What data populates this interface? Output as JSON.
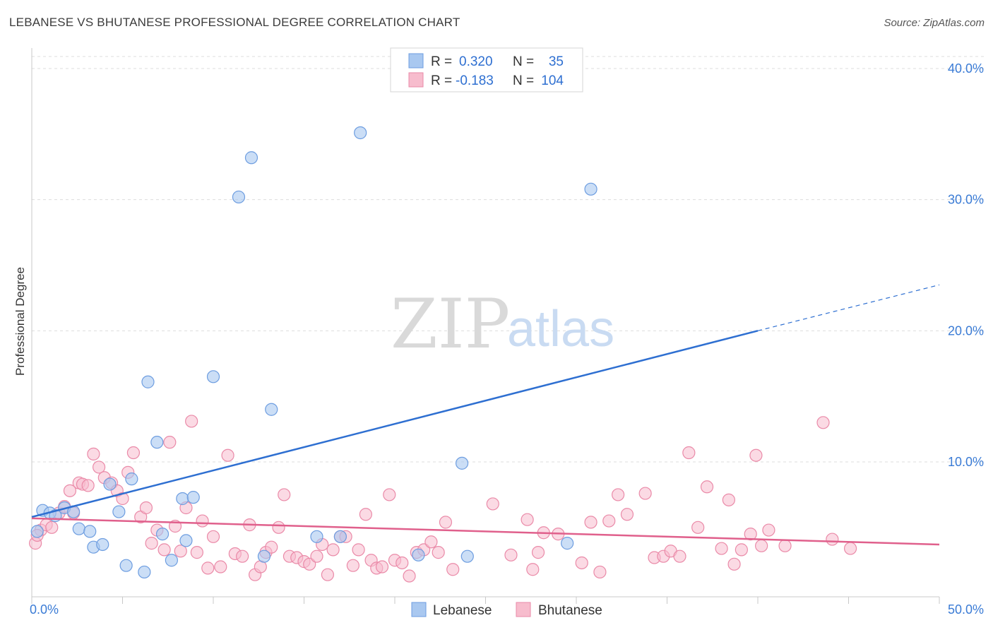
{
  "title": "LEBANESE VS BHUTANESE PROFESSIONAL DEGREE CORRELATION CHART",
  "source": "Source: ZipAtlas.com",
  "watermark": {
    "zip": "ZIP",
    "atlas": "atlas"
  },
  "legend": {
    "rows": [
      {
        "r_label": "R =",
        "r_value": "0.320",
        "n_label": "N =",
        "n_value": "35",
        "color": "#a9c8f0",
        "border": "#6d9de0"
      },
      {
        "r_label": "R =",
        "r_value": "-0.183",
        "n_label": "N =",
        "n_value": "104",
        "color": "#f7bccd",
        "border": "#ea8aa8"
      }
    ]
  },
  "colors": {
    "blue_fill": "#a9c8f0",
    "blue_stroke": "#6d9de0",
    "blue_line": "#2e6fd1",
    "pink_fill": "#f7bccd",
    "pink_stroke": "#ea8aa8",
    "pink_line": "#e0608c",
    "grid": "#dddddd",
    "tick": "#3a7bd5"
  },
  "chart_data": {
    "type": "scatter",
    "title": "LEBANESE VS BHUTANESE PROFESSIONAL DEGREE CORRELATION CHART",
    "xlabel": "",
    "ylabel": "Professional Degree",
    "xlim": [
      0,
      50
    ],
    "ylim": [
      0,
      42
    ],
    "x_tick_labels": [
      "0.0%",
      "50.0%"
    ],
    "y_ticks": [
      10,
      20,
      30,
      40
    ],
    "y_tick_labels": [
      "10.0%",
      "20.0%",
      "30.0%",
      "40.0%"
    ],
    "grid": true,
    "legend_position": "top-center",
    "series": [
      {
        "name": "Lebanese",
        "r": 0.32,
        "n": 35,
        "trend": {
          "x0": 0,
          "y0": 5.8,
          "x1": 40,
          "y1": 20.0,
          "dash_to_x": 50,
          "dash_to_y": 23.5
        },
        "points": [
          [
            0.3,
            4.7
          ],
          [
            0.6,
            6.3
          ],
          [
            1.0,
            6.1
          ],
          [
            1.3,
            5.9
          ],
          [
            1.8,
            6.5
          ],
          [
            2.3,
            6.2
          ],
          [
            2.6,
            4.9
          ],
          [
            3.2,
            4.7
          ],
          [
            3.4,
            3.5
          ],
          [
            3.9,
            3.7
          ],
          [
            4.3,
            8.3
          ],
          [
            4.8,
            6.2
          ],
          [
            5.2,
            2.1
          ],
          [
            5.5,
            8.7
          ],
          [
            6.2,
            1.6
          ],
          [
            6.4,
            16.1
          ],
          [
            6.9,
            11.5
          ],
          [
            7.2,
            4.5
          ],
          [
            7.7,
            2.5
          ],
          [
            8.3,
            7.2
          ],
          [
            8.5,
            4.0
          ],
          [
            8.9,
            7.3
          ],
          [
            10.0,
            16.5
          ],
          [
            11.4,
            30.2
          ],
          [
            12.1,
            33.2
          ],
          [
            12.8,
            2.8
          ],
          [
            13.2,
            14.0
          ],
          [
            15.7,
            4.3
          ],
          [
            17.0,
            4.3
          ],
          [
            18.1,
            35.1
          ],
          [
            21.3,
            2.9
          ],
          [
            23.7,
            9.9
          ],
          [
            24.0,
            2.8
          ],
          [
            29.5,
            3.8
          ],
          [
            30.8,
            30.8
          ]
        ]
      },
      {
        "name": "Bhutanese",
        "r": -0.183,
        "n": 104,
        "trend": {
          "x0": 0,
          "y0": 5.7,
          "x1": 50,
          "y1": 3.7
        },
        "points": [
          [
            0.2,
            3.8
          ],
          [
            0.5,
            4.8
          ],
          [
            0.8,
            5.2
          ],
          [
            1.1,
            5.0
          ],
          [
            1.5,
            6.1
          ],
          [
            1.8,
            6.6
          ],
          [
            2.1,
            7.8
          ],
          [
            2.3,
            6.1
          ],
          [
            2.6,
            8.4
          ],
          [
            2.8,
            8.3
          ],
          [
            3.1,
            8.2
          ],
          [
            3.4,
            10.6
          ],
          [
            3.7,
            9.6
          ],
          [
            4.0,
            8.8
          ],
          [
            4.4,
            8.4
          ],
          [
            4.7,
            7.8
          ],
          [
            5.0,
            7.2
          ],
          [
            5.3,
            9.2
          ],
          [
            5.6,
            10.7
          ],
          [
            6.0,
            5.8
          ],
          [
            6.3,
            6.5
          ],
          [
            6.6,
            3.8
          ],
          [
            6.9,
            4.8
          ],
          [
            7.3,
            3.3
          ],
          [
            7.6,
            11.5
          ],
          [
            7.9,
            5.1
          ],
          [
            8.2,
            3.2
          ],
          [
            8.5,
            6.5
          ],
          [
            8.8,
            13.1
          ],
          [
            9.1,
            3.1
          ],
          [
            9.4,
            5.5
          ],
          [
            9.7,
            1.9
          ],
          [
            10.0,
            4.3
          ],
          [
            10.4,
            2.0
          ],
          [
            10.8,
            10.5
          ],
          [
            11.2,
            3.0
          ],
          [
            11.6,
            2.8
          ],
          [
            12.0,
            5.2
          ],
          [
            12.3,
            1.4
          ],
          [
            12.6,
            2.0
          ],
          [
            12.9,
            3.1
          ],
          [
            13.2,
            3.5
          ],
          [
            13.6,
            5.0
          ],
          [
            13.9,
            7.5
          ],
          [
            14.2,
            2.8
          ],
          [
            14.6,
            2.7
          ],
          [
            15.0,
            2.4
          ],
          [
            15.3,
            2.2
          ],
          [
            15.7,
            2.8
          ],
          [
            16.0,
            3.7
          ],
          [
            16.3,
            1.4
          ],
          [
            16.6,
            3.3
          ],
          [
            17.0,
            4.3
          ],
          [
            17.3,
            4.3
          ],
          [
            17.7,
            2.1
          ],
          [
            18.0,
            3.3
          ],
          [
            18.4,
            6.0
          ],
          [
            18.7,
            2.5
          ],
          [
            19.0,
            1.9
          ],
          [
            19.3,
            2.0
          ],
          [
            19.7,
            7.5
          ],
          [
            20.0,
            2.5
          ],
          [
            20.4,
            2.3
          ],
          [
            20.8,
            1.3
          ],
          [
            21.2,
            3.1
          ],
          [
            21.6,
            3.3
          ],
          [
            22.0,
            3.9
          ],
          [
            22.4,
            3.1
          ],
          [
            22.8,
            5.4
          ],
          [
            23.2,
            1.8
          ],
          [
            25.4,
            6.8
          ],
          [
            26.4,
            2.9
          ],
          [
            27.3,
            5.6
          ],
          [
            27.6,
            1.8
          ],
          [
            27.9,
            3.1
          ],
          [
            28.2,
            4.6
          ],
          [
            29.0,
            4.5
          ],
          [
            30.3,
            2.3
          ],
          [
            30.8,
            5.4
          ],
          [
            31.3,
            1.6
          ],
          [
            31.8,
            5.5
          ],
          [
            32.3,
            7.5
          ],
          [
            32.8,
            6.0
          ],
          [
            33.8,
            7.6
          ],
          [
            34.3,
            2.7
          ],
          [
            34.8,
            2.8
          ],
          [
            35.2,
            3.2
          ],
          [
            35.7,
            2.8
          ],
          [
            36.2,
            10.7
          ],
          [
            36.7,
            5.0
          ],
          [
            37.2,
            8.1
          ],
          [
            38.0,
            3.4
          ],
          [
            38.4,
            7.1
          ],
          [
            38.7,
            2.2
          ],
          [
            39.1,
            3.3
          ],
          [
            39.6,
            4.5
          ],
          [
            39.9,
            10.5
          ],
          [
            40.2,
            3.6
          ],
          [
            40.6,
            4.8
          ],
          [
            41.5,
            3.6
          ],
          [
            43.6,
            13.0
          ],
          [
            44.1,
            4.1
          ],
          [
            45.1,
            3.4
          ],
          [
            0.3,
            4.4
          ]
        ]
      }
    ]
  },
  "bottom_legend": [
    {
      "label": "Lebanese"
    },
    {
      "label": "Bhutanese"
    }
  ]
}
